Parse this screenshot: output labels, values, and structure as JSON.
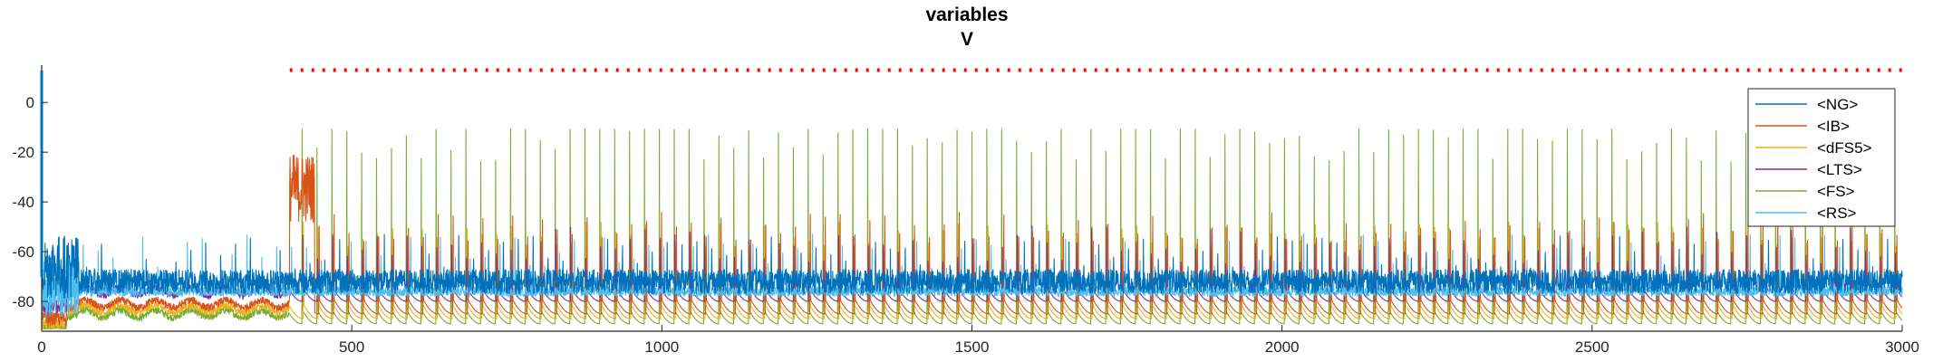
{
  "chart_data": {
    "type": "line",
    "title": "variables",
    "subtitle": "V",
    "xlabel": "",
    "ylabel": "",
    "xlim": [
      0,
      3000
    ],
    "ylim": [
      -92,
      15
    ],
    "x_ticks": [
      0,
      500,
      1000,
      1500,
      2000,
      2500,
      3000
    ],
    "y_ticks": [
      0,
      -20,
      -40,
      -60,
      -80
    ],
    "x_tick_labels": [
      "0",
      "500",
      "1000",
      "1500",
      "2000",
      "2500",
      "3000"
    ],
    "y_tick_labels": [
      "0",
      "-20",
      "-40",
      "-60",
      "-80"
    ],
    "grid": false,
    "legend_position": "top-right",
    "series": [
      {
        "name": "<NG>",
        "color": "#0072BD",
        "baseline": -72,
        "spike_peak": -60,
        "period": 24,
        "onset": 0
      },
      {
        "name": "<IB>",
        "color": "#D95319",
        "baseline": -85,
        "spike_peak": -28,
        "period": 24,
        "onset": 400,
        "burst_window": [
          390,
          440
        ],
        "burst_peak": -16
      },
      {
        "name": "<dFS5>",
        "color": "#EDB120",
        "baseline": -87,
        "spike_peak": -22,
        "period": 24,
        "onset": 400
      },
      {
        "name": "<LTS>",
        "color": "#7E2F8E",
        "baseline": -80,
        "spike_peak": -50,
        "period": 24,
        "onset": 400
      },
      {
        "name": "<FS>",
        "color": "#77AC30",
        "baseline": -89,
        "spike_peak": -10,
        "period": 24,
        "onset": 400,
        "max_peak": -7
      },
      {
        "name": "<RS>",
        "color": "#4DBEEE",
        "baseline": -80,
        "spike_peak": -58,
        "period": 24,
        "onset": 0
      }
    ],
    "reference_line": {
      "style": "dotted",
      "color": "#FF0000",
      "y": 13,
      "x_range": [
        400,
        3000
      ]
    }
  }
}
